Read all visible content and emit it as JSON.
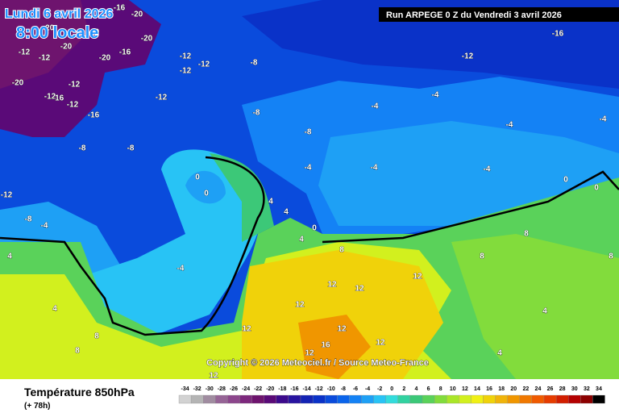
{
  "header": {
    "date": "Lundi 6 avril 2026",
    "time": "8:00 locale",
    "run": "Run ARPEGE 0 Z du Vendredi 3 avril 2026"
  },
  "copyright": "Copyright © 2026 Meteociel.fr / Source Meteo-France",
  "footer": {
    "title": "Température 850hPa",
    "lead": "(+ 78h)"
  },
  "legend": {
    "values": [
      -34,
      -32,
      -30,
      -28,
      -26,
      -24,
      -22,
      -20,
      -18,
      -16,
      -14,
      -12,
      -10,
      -8,
      -6,
      -4,
      -2,
      0,
      2,
      4,
      6,
      8,
      10,
      12,
      14,
      16,
      18,
      20,
      22,
      24,
      26,
      28,
      30,
      32,
      34
    ],
    "colors": [
      "#d2d2d2",
      "#b4b4b4",
      "#a08ca0",
      "#966496",
      "#8c468c",
      "#7d287d",
      "#6e146e",
      "#5a0a78",
      "#3c0a8c",
      "#2814a0",
      "#1423b4",
      "#0a32c8",
      "#0a4bdc",
      "#0a64eb",
      "#1482f5",
      "#1ea0f5",
      "#28c3f5",
      "#32dcdc",
      "#32d2a0",
      "#3cc878",
      "#5ad25a",
      "#82dc3c",
      "#aae628",
      "#d2f01e",
      "#f0f014",
      "#f0d20a",
      "#f0b40a",
      "#f09600",
      "#f07800",
      "#f05a00",
      "#e63c00",
      "#d21e00",
      "#b40000",
      "#8c0000",
      "#000000"
    ]
  },
  "map": {
    "labels": [
      -20,
      -16,
      -20,
      -20,
      -12,
      -12,
      -20,
      -20,
      -16,
      -20,
      -12,
      -12,
      -16,
      -12,
      -16,
      -8,
      -8,
      -12,
      -8,
      -4,
      -20,
      -12,
      -12,
      -8,
      -12,
      -12,
      -8,
      -8,
      -4,
      -4,
      -4,
      -4,
      -12,
      -16,
      -4,
      -4,
      -4,
      0,
      0,
      0,
      0,
      0,
      4,
      4,
      4,
      -4,
      4,
      8,
      8,
      8,
      8,
      12,
      12,
      12,
      12,
      12,
      12,
      12,
      16,
      12,
      12,
      8,
      4,
      4,
      4,
      8
    ]
  }
}
